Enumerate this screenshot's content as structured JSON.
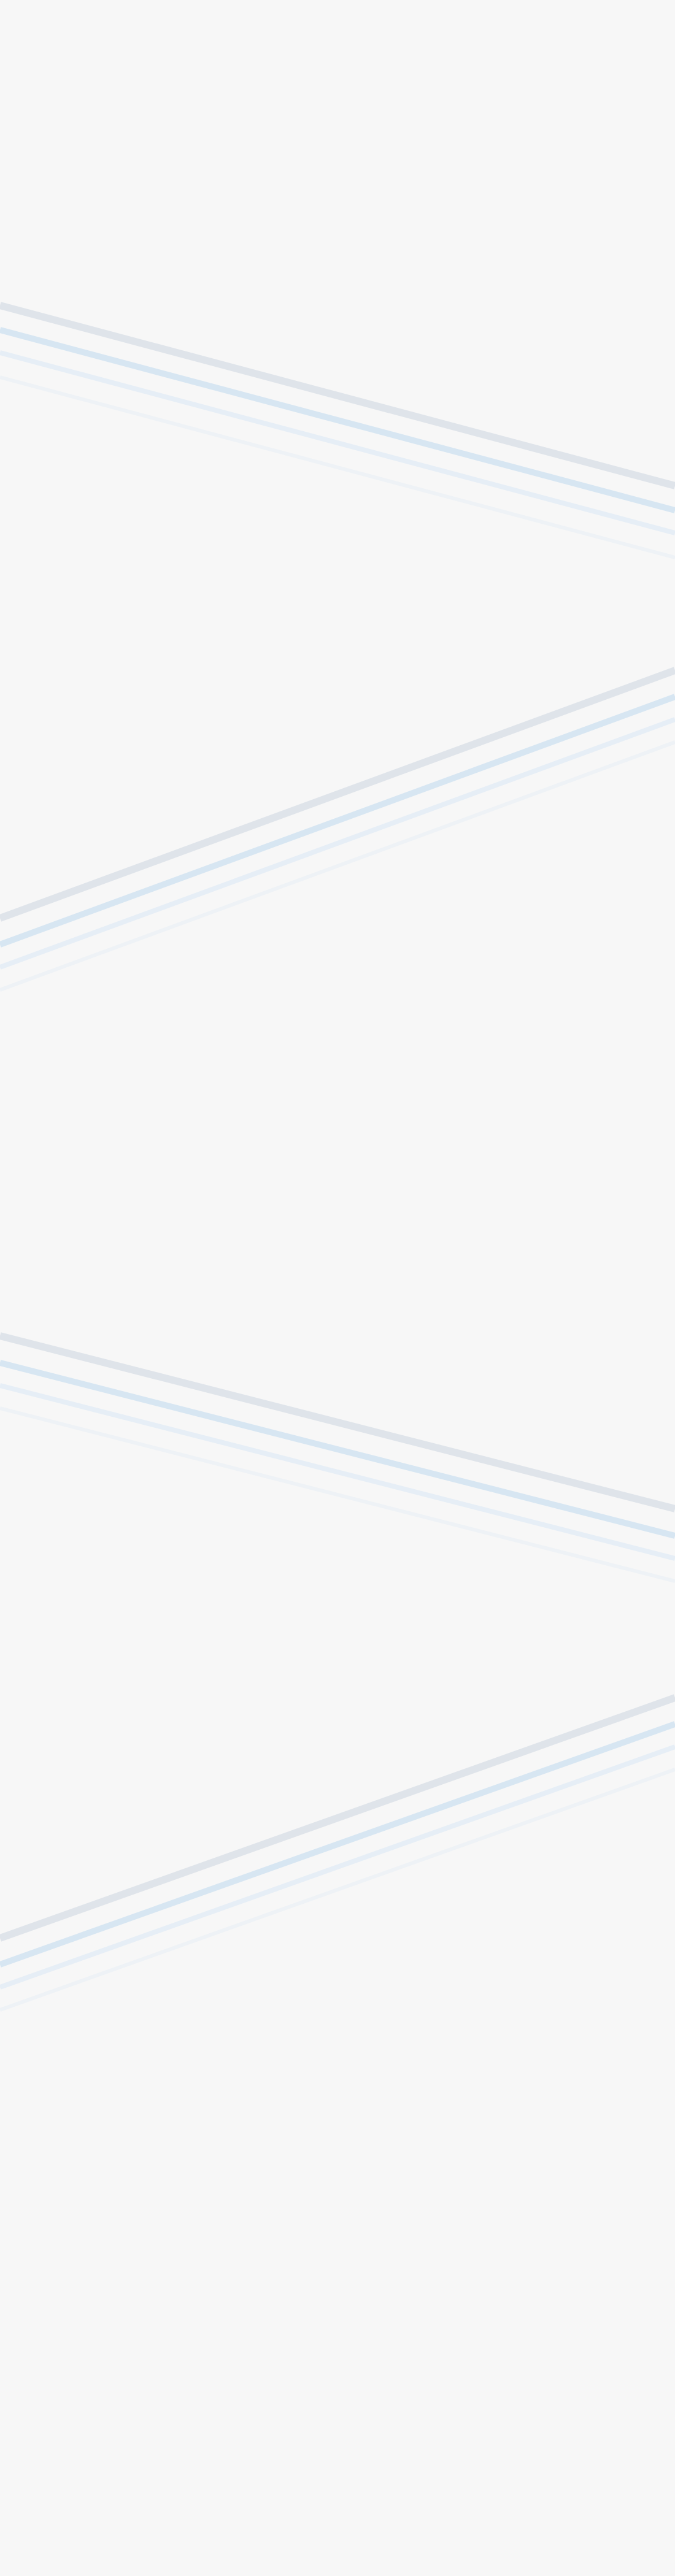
{
  "page": {
    "background_color": "#f7f7f7"
  },
  "palette": {
    "line_gray": "#dfe4ea",
    "line_blue": "#d7e6f2",
    "line_blue_light": "#e6eef6",
    "line_faint": "#eef2f6"
  }
}
